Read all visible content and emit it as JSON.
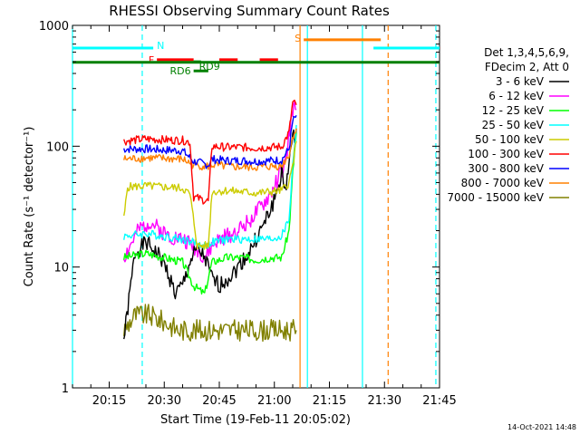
{
  "chart_data": {
    "type": "line",
    "title": "RHESSI Observing Summary Count Rates",
    "xlabel": "Start Time (19-Feb-11 20:05:02)",
    "ylabel": "Count Rate (s⁻¹ detector⁻¹)",
    "yscale": "log",
    "xlim": [
      "20:05",
      "21:45"
    ],
    "ylim": [
      1,
      1000
    ],
    "grid": false,
    "x_ticks": [
      "20:15",
      "20:30",
      "20:45",
      "21:00",
      "21:15",
      "21:30",
      "21:45"
    ],
    "y_ticks": [
      "1",
      "10",
      "100",
      "1000"
    ],
    "legend_header": [
      "Det 1,3,4,5,6,9,",
      "FDecim 2, Att 0"
    ],
    "legend_position": "right",
    "timestamp": "14-Oct-2021 14:48",
    "series": [
      {
        "name": "3 - 6 keV",
        "color": "#000000",
        "points": [
          [
            "20:19",
            2.5
          ],
          [
            "20:22",
            13
          ],
          [
            "20:25",
            16
          ],
          [
            "20:27",
            14
          ],
          [
            "20:29",
            12
          ],
          [
            "20:31",
            9
          ],
          [
            "20:33",
            6
          ],
          [
            "20:35",
            7
          ],
          [
            "20:37",
            11
          ],
          [
            "20:39",
            14
          ],
          [
            "20:41",
            12
          ],
          [
            "20:43",
            8
          ],
          [
            "20:45",
            7
          ],
          [
            "20:47",
            8
          ],
          [
            "20:49",
            9
          ],
          [
            "20:51",
            11
          ],
          [
            "20:53",
            13
          ],
          [
            "20:55",
            17
          ],
          [
            "20:57",
            22
          ],
          [
            "20:59",
            30
          ],
          [
            "21:01",
            45
          ],
          [
            "21:02",
            60
          ],
          [
            "21:03",
            40
          ],
          [
            "21:04",
            80
          ],
          [
            "21:05",
            110
          ],
          [
            "21:06",
            140
          ]
        ]
      },
      {
        "name": "6 - 12 keV",
        "color": "#ff00ff",
        "points": [
          [
            "20:19",
            12
          ],
          [
            "20:23",
            20
          ],
          [
            "20:26",
            24
          ],
          [
            "20:29",
            20
          ],
          [
            "20:32",
            18
          ],
          [
            "20:35",
            17
          ],
          [
            "20:38",
            15
          ],
          [
            "20:41",
            12
          ],
          [
            "20:44",
            16
          ],
          [
            "20:47",
            18
          ],
          [
            "20:50",
            20
          ],
          [
            "20:53",
            24
          ],
          [
            "20:56",
            30
          ],
          [
            "20:59",
            40
          ],
          [
            "21:01",
            55
          ],
          [
            "21:03",
            70
          ],
          [
            "21:04",
            120
          ],
          [
            "21:05",
            200
          ],
          [
            "21:06",
            200
          ]
        ]
      },
      {
        "name": "12 - 25 keV",
        "color": "#00ff00",
        "points": [
          [
            "20:19",
            12
          ],
          [
            "20:25",
            13
          ],
          [
            "20:30",
            12
          ],
          [
            "20:35",
            11
          ],
          [
            "20:38",
            7
          ],
          [
            "20:41",
            6
          ],
          [
            "20:43",
            11
          ],
          [
            "20:47",
            12
          ],
          [
            "20:51",
            12
          ],
          [
            "20:55",
            11.5
          ],
          [
            "20:59",
            12
          ],
          [
            "21:02",
            12
          ],
          [
            "21:04",
            20
          ],
          [
            "21:05",
            60
          ],
          [
            "21:06",
            130
          ]
        ]
      },
      {
        "name": "25 - 50 keV",
        "color": "#00ffff",
        "points": [
          [
            "20:19",
            18
          ],
          [
            "20:25",
            19
          ],
          [
            "20:30",
            18
          ],
          [
            "20:35",
            17
          ],
          [
            "20:38",
            16
          ],
          [
            "20:41",
            15
          ],
          [
            "20:43",
            16
          ],
          [
            "20:47",
            17
          ],
          [
            "20:51",
            17
          ],
          [
            "20:55",
            17
          ],
          [
            "20:59",
            17
          ],
          [
            "21:02",
            18
          ],
          [
            "21:04",
            25
          ],
          [
            "21:05",
            70
          ],
          [
            "21:06",
            150
          ]
        ]
      },
      {
        "name": "50 - 100 keV",
        "color": "#cccc00",
        "points": [
          [
            "20:19",
            25
          ],
          [
            "20:20",
            46
          ],
          [
            "20:25",
            47
          ],
          [
            "20:30",
            46
          ],
          [
            "20:35",
            45
          ],
          [
            "20:37",
            40
          ],
          [
            "20:39",
            15
          ],
          [
            "20:42",
            15
          ],
          [
            "20:43",
            42
          ],
          [
            "20:47",
            43
          ],
          [
            "20:51",
            42
          ],
          [
            "20:55",
            41
          ],
          [
            "20:59",
            42
          ],
          [
            "21:02",
            43
          ],
          [
            "21:04",
            50
          ],
          [
            "21:05",
            70
          ],
          [
            "21:06",
            110
          ]
        ]
      },
      {
        "name": "100 - 300 keV",
        "color": "#ff0000",
        "points": [
          [
            "20:19",
            110
          ],
          [
            "20:25",
            115
          ],
          [
            "20:30",
            113
          ],
          [
            "20:35",
            112
          ],
          [
            "20:37",
            108
          ],
          [
            "20:38",
            38
          ],
          [
            "20:42",
            35
          ],
          [
            "20:43",
            100
          ],
          [
            "20:47",
            98
          ],
          [
            "20:51",
            98
          ],
          [
            "20:55",
            97
          ],
          [
            "20:59",
            98
          ],
          [
            "21:02",
            99
          ],
          [
            "21:04",
            130
          ],
          [
            "21:05",
            230
          ],
          [
            "21:06",
            220
          ]
        ]
      },
      {
        "name": "300 - 800 keV",
        "color": "#0000ff",
        "points": [
          [
            "20:19",
            95
          ],
          [
            "20:25",
            95
          ],
          [
            "20:30",
            93
          ],
          [
            "20:35",
            92
          ],
          [
            "20:38",
            75
          ],
          [
            "20:42",
            70
          ],
          [
            "20:43",
            78
          ],
          [
            "20:47",
            76
          ],
          [
            "20:51",
            76
          ],
          [
            "20:55",
            75
          ],
          [
            "20:59",
            76
          ],
          [
            "21:02",
            77
          ],
          [
            "21:04",
            95
          ],
          [
            "21:05",
            160
          ],
          [
            "21:06",
            180
          ]
        ]
      },
      {
        "name": "800 - 7000 keV",
        "color": "#ff8000",
        "points": [
          [
            "20:19",
            78
          ],
          [
            "20:25",
            80
          ],
          [
            "20:30",
            79
          ],
          [
            "20:35",
            78
          ],
          [
            "20:38",
            70
          ],
          [
            "20:42",
            68
          ],
          [
            "20:43",
            70
          ],
          [
            "20:47",
            68
          ],
          [
            "20:51",
            67
          ],
          [
            "20:55",
            67
          ],
          [
            "20:59",
            68
          ],
          [
            "21:02",
            69
          ],
          [
            "21:04",
            85
          ],
          [
            "21:05",
            120
          ],
          [
            "21:06",
            140
          ]
        ]
      },
      {
        "name": "7000 - 15000 keV",
        "color": "#808000",
        "points": [
          [
            "20:19",
            3
          ],
          [
            "20:22",
            4
          ],
          [
            "20:26",
            4
          ],
          [
            "20:30",
            3.5
          ],
          [
            "20:34",
            3
          ],
          [
            "20:38",
            3
          ],
          [
            "20:42",
            3
          ],
          [
            "20:46",
            3
          ],
          [
            "20:50",
            3
          ],
          [
            "20:54",
            3
          ],
          [
            "20:58",
            3
          ],
          [
            "21:02",
            3
          ],
          [
            "21:04",
            3
          ],
          [
            "21:06",
            3
          ]
        ]
      }
    ],
    "bars": [
      {
        "label": "N",
        "color": "#00ffff",
        "y": 650,
        "segments": [
          [
            "20:05",
            "20:27"
          ],
          [
            "21:27",
            "21:45"
          ]
        ]
      },
      {
        "label": "S",
        "color": "#ff8000",
        "y": 760,
        "segments": [
          [
            "21:08",
            "21:29"
          ]
        ]
      },
      {
        "label": "F",
        "color": "#ff0000",
        "y": 520,
        "segments": [
          [
            "20:28",
            "20:38"
          ],
          [
            "20:45",
            "20:50"
          ],
          [
            "20:56",
            "21:01"
          ]
        ]
      },
      {
        "label": "RD9",
        "color": "#008000",
        "y": 500,
        "segments": [
          [
            "20:38",
            "20:40"
          ]
        ]
      },
      {
        "label": "RD6",
        "color": "#008000",
        "y": 420,
        "segments": [
          [
            "20:38",
            "20:42"
          ]
        ]
      },
      {
        "label": "",
        "color": "#008000",
        "y": 495,
        "segments": [
          [
            "20:05",
            "21:45"
          ]
        ]
      }
    ],
    "vlines": [
      {
        "time": "20:05",
        "color": "#00ffff",
        "style": "solid"
      },
      {
        "time": "20:24",
        "color": "#00ffff",
        "style": "dashed"
      },
      {
        "time": "21:07",
        "color": "#ff8000",
        "style": "solid"
      },
      {
        "time": "21:09",
        "color": "#00ffff",
        "style": "solid"
      },
      {
        "time": "21:24",
        "color": "#00ffff",
        "style": "solid"
      },
      {
        "time": "21:31",
        "color": "#ff8000",
        "style": "dashed"
      },
      {
        "time": "21:44",
        "color": "#00ffff",
        "style": "dashed"
      }
    ]
  }
}
